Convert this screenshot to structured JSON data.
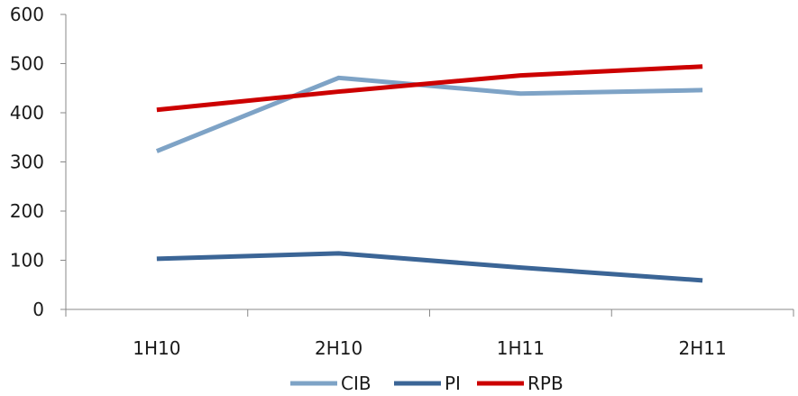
{
  "chart_data": {
    "type": "line",
    "categories": [
      "1H10",
      "2H10",
      "1H11",
      "2H11"
    ],
    "series": [
      {
        "name": "CIB",
        "color": "#7ea3c6",
        "values": [
          322,
          471,
          439,
          446
        ]
      },
      {
        "name": "PI",
        "color": "#3b6596",
        "values": [
          103,
          114,
          85,
          59
        ]
      },
      {
        "name": "RPB",
        "color": "#cc0000",
        "values": [
          406,
          443,
          476,
          494
        ]
      }
    ],
    "y_ticks": [
      "0",
      "100",
      "200",
      "300",
      "400",
      "500",
      "600"
    ],
    "ylim": [
      0,
      600
    ],
    "grid": false,
    "legend_position": "bottom"
  }
}
